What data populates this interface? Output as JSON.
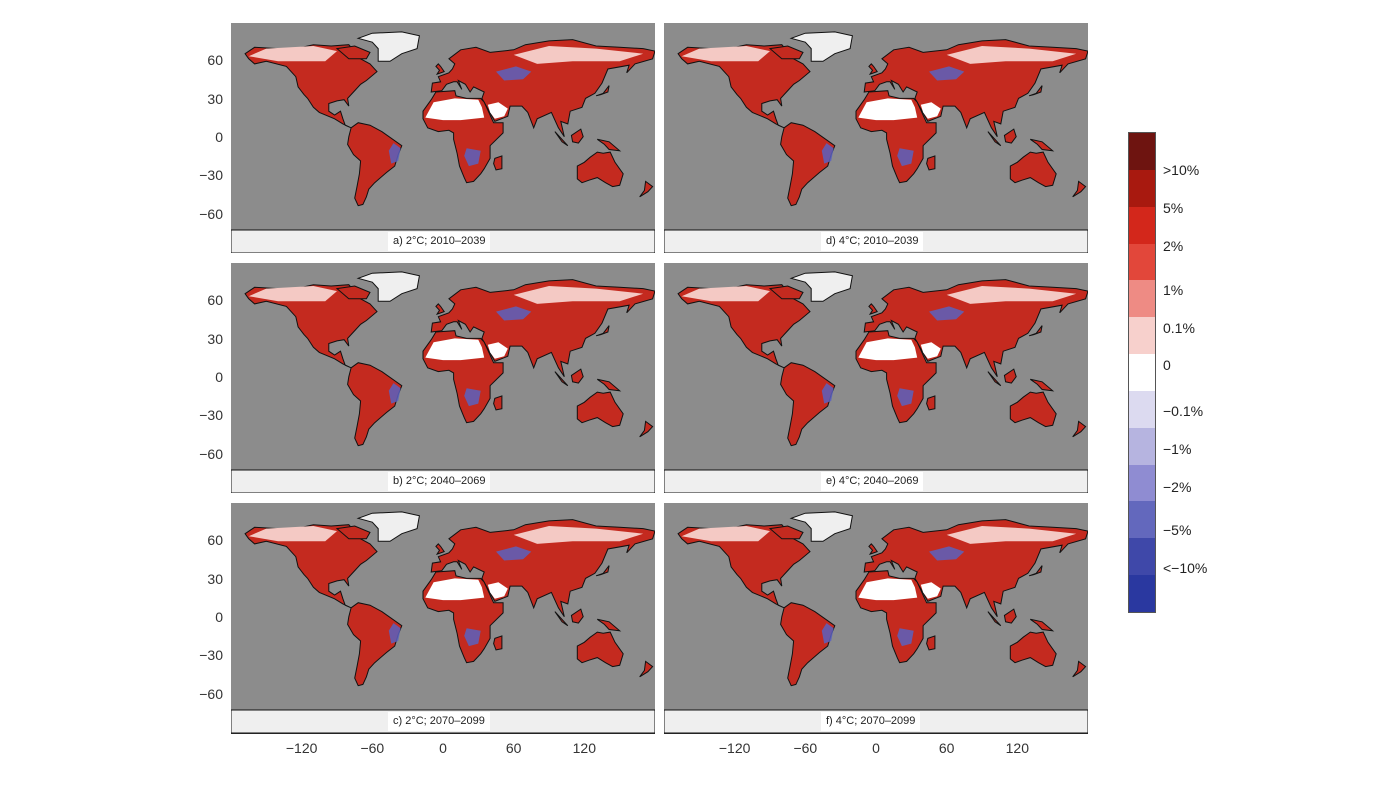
{
  "panels": [
    {
      "id": "a",
      "label": "a) 2°C; 2010–2039"
    },
    {
      "id": "b",
      "label": "b) 2°C; 2040–2069"
    },
    {
      "id": "c",
      "label": "c) 2°C; 2070–2099"
    },
    {
      "id": "d",
      "label": "d) 4°C; 2010–2039"
    },
    {
      "id": "e",
      "label": "e) 4°C; 2040–2069"
    },
    {
      "id": "f",
      "label": "f) 4°C; 2070–2099"
    }
  ],
  "axes": {
    "y_ticks": [
      "60",
      "30",
      "0",
      "−30",
      "−60"
    ],
    "x_ticks": [
      "−120",
      "−60",
      "0",
      "60",
      "120"
    ]
  },
  "colorbar": {
    "labels": [
      ">10%",
      "5%",
      "2%",
      "1%",
      "0.1%",
      "0",
      "−0.1%",
      "−1%",
      "−2%",
      "−5%",
      "<−10%"
    ],
    "colors": [
      "#6e1410",
      "#a8190f",
      "#d3271b",
      "#e2473a",
      "#ee8b84",
      "#f7d0cc",
      "#ffffff",
      "#dcdaf0",
      "#b6b4e0",
      "#8f8cd2",
      "#6368bd",
      "#3f48a9",
      "#2a38a0"
    ]
  },
  "map_colors": {
    "ocean": "#8c8c8c",
    "ice": "#efefef",
    "dry_white": "#ffffff",
    "increase": "#c42a1f",
    "decrease": "#5a62c0"
  }
}
